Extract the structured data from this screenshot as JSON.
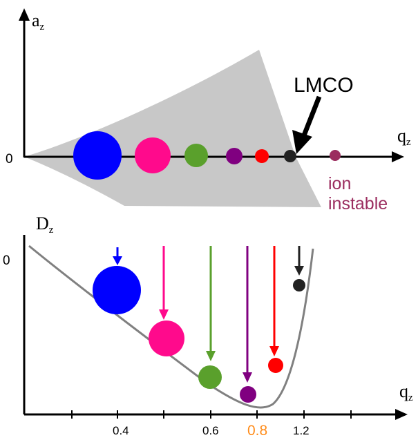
{
  "top_panel": {
    "y_axis_label": "a",
    "y_axis_sub": "z",
    "x_axis_label": "q",
    "x_axis_sub": "z",
    "origin_label": "0",
    "lmco_label": "LMCO",
    "ion_label_line1": "ion",
    "ion_label_line2": "instable",
    "ion_color": "#9b2d5f",
    "region_color": "#c8c8c8"
  },
  "bottom_panel": {
    "y_axis_label": "D",
    "y_axis_sub": "z",
    "x_axis_label": "q",
    "x_axis_sub": "z",
    "zero_label": "0",
    "curve_color": "#808080",
    "ticks": [
      {
        "label": "0.4",
        "color": "#000000"
      },
      {
        "label": "0.6",
        "color": "#000000"
      },
      {
        "label": "0.8",
        "color": "#ff8c1a"
      },
      {
        "label": "1.2",
        "color": "#000000"
      }
    ]
  },
  "ions": [
    {
      "name": "blue",
      "color": "#0000ff"
    },
    {
      "name": "pink",
      "color": "#ff0a8c"
    },
    {
      "name": "green",
      "color": "#5aa02c"
    },
    {
      "name": "purple",
      "color": "#800080"
    },
    {
      "name": "red",
      "color": "#ff0000"
    },
    {
      "name": "black",
      "color": "#222222"
    }
  ]
}
